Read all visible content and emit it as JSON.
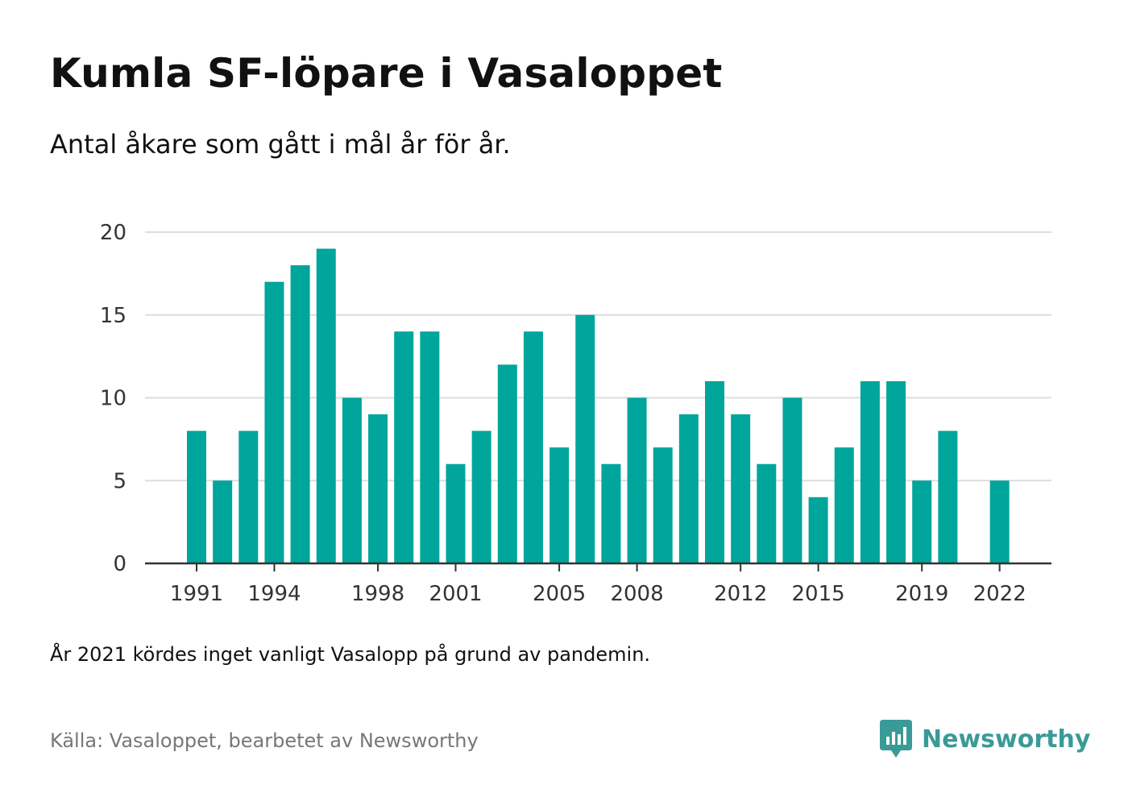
{
  "title": "Kumla SF-löpare i Vasaloppet",
  "subtitle": "Antal åkare som gått i mål år för år.",
  "note": "År 2021 kördes inget vanligt Vasalopp på grund av pandemin.",
  "source": "Källa: Vasaloppet, bearbetet av Newsworthy",
  "brand": {
    "name": "Newsworthy",
    "icon": "newsworthy-logo-icon",
    "color": "#3a9a97"
  },
  "colors": {
    "bar": "#00a59b",
    "grid": "#dddddd",
    "axis": "#333333"
  },
  "chart_data": {
    "type": "bar",
    "title": "Kumla SF-löpare i Vasaloppet",
    "subtitle": "Antal åkare som gått i mål år för år.",
    "xlabel": "",
    "ylabel": "",
    "categories": [
      1991,
      1992,
      1993,
      1994,
      1995,
      1996,
      1997,
      1998,
      1999,
      2000,
      2001,
      2002,
      2003,
      2004,
      2005,
      2006,
      2007,
      2008,
      2009,
      2010,
      2011,
      2012,
      2013,
      2014,
      2015,
      2016,
      2017,
      2018,
      2019,
      2020,
      2021,
      2022
    ],
    "values": [
      8,
      5,
      8,
      17,
      18,
      19,
      10,
      9,
      14,
      14,
      6,
      8,
      12,
      14,
      7,
      15,
      6,
      10,
      7,
      9,
      11,
      9,
      6,
      10,
      4,
      7,
      11,
      11,
      5,
      8,
      null,
      5
    ],
    "ylim": [
      0,
      20
    ],
    "yticks": [
      0,
      5,
      10,
      15,
      20
    ],
    "xticks": [
      1991,
      1994,
      1998,
      2001,
      2005,
      2008,
      2012,
      2015,
      2019,
      2022
    ],
    "grid": true,
    "legend": "none"
  }
}
